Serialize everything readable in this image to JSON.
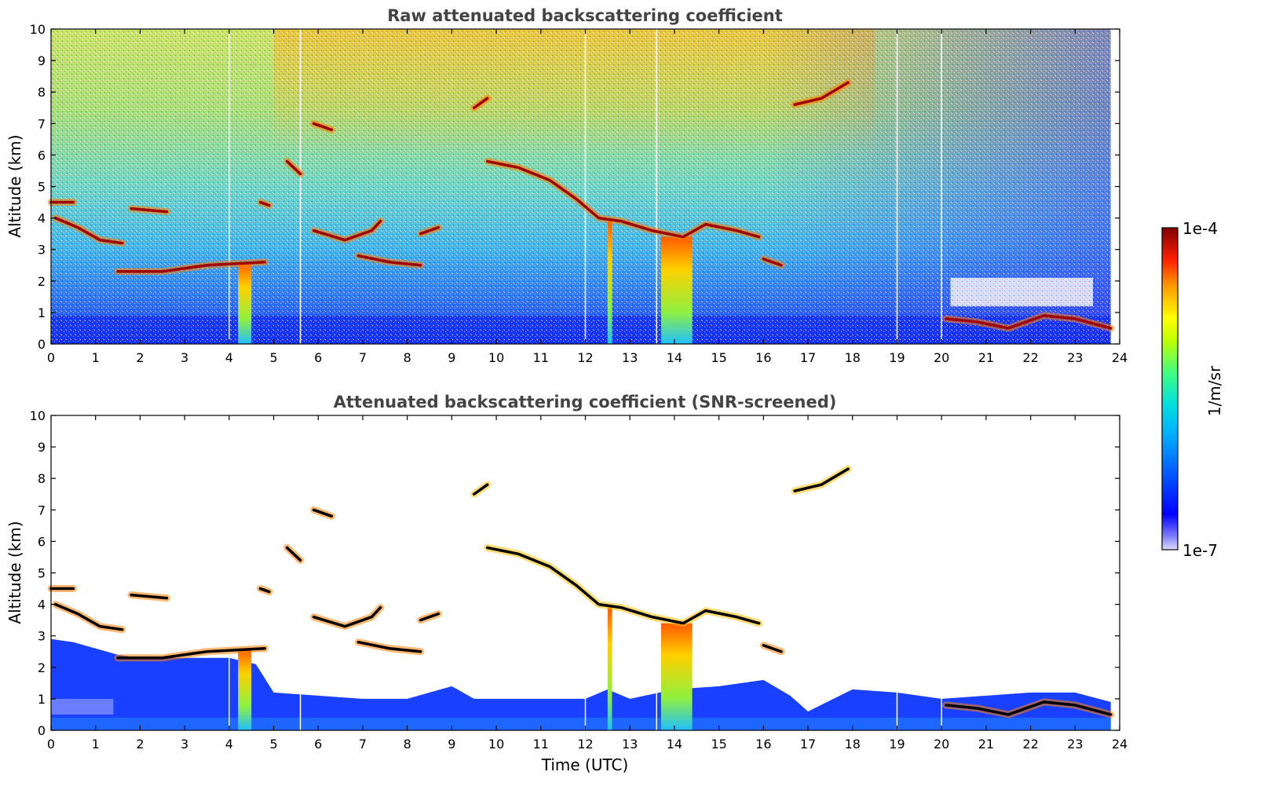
{
  "chart_data": [
    {
      "type": "heatmap",
      "title": "Raw attenuated backscattering coefficient",
      "xlabel": "",
      "ylabel": "Altitude (km)",
      "xlim": [
        0,
        24
      ],
      "ylim": [
        0,
        10
      ],
      "xticks": [
        "0",
        "1",
        "2",
        "3",
        "4",
        "5",
        "6",
        "7",
        "8",
        "9",
        "10",
        "11",
        "12",
        "13",
        "14",
        "15",
        "16",
        "17",
        "18",
        "19",
        "20",
        "21",
        "22",
        "23",
        "24"
      ],
      "yticks": [
        "0",
        "1",
        "2",
        "3",
        "4",
        "5",
        "6",
        "7",
        "8",
        "9",
        "10"
      ],
      "layers": [
        {
          "kind": "cloud",
          "points": [
            [
              0.0,
              4.5
            ],
            [
              0.5,
              4.5
            ]
          ]
        },
        {
          "kind": "cloud",
          "points": [
            [
              0.1,
              4.0
            ],
            [
              0.6,
              3.7
            ],
            [
              1.1,
              3.3
            ],
            [
              1.6,
              3.2
            ]
          ]
        },
        {
          "kind": "cloud",
          "points": [
            [
              1.8,
              4.3
            ],
            [
              2.6,
              4.2
            ]
          ]
        },
        {
          "kind": "cloud",
          "points": [
            [
              1.5,
              2.3
            ],
            [
              2.5,
              2.3
            ],
            [
              3.5,
              2.5
            ],
            [
              4.8,
              2.6
            ]
          ]
        },
        {
          "kind": "cloud",
          "points": [
            [
              4.7,
              4.5
            ],
            [
              4.9,
              4.4
            ]
          ]
        },
        {
          "kind": "cloud",
          "points": [
            [
              5.3,
              5.8
            ],
            [
              5.6,
              5.4
            ]
          ]
        },
        {
          "kind": "cloud",
          "points": [
            [
              5.9,
              7.0
            ],
            [
              6.3,
              6.8
            ]
          ]
        },
        {
          "kind": "cloud",
          "points": [
            [
              5.9,
              3.6
            ],
            [
              6.6,
              3.3
            ],
            [
              7.2,
              3.6
            ],
            [
              7.4,
              3.9
            ]
          ]
        },
        {
          "kind": "cloud",
          "points": [
            [
              6.9,
              2.8
            ],
            [
              7.6,
              2.6
            ],
            [
              8.3,
              2.5
            ]
          ]
        },
        {
          "kind": "cloud",
          "points": [
            [
              8.3,
              3.5
            ],
            [
              8.7,
              3.7
            ]
          ]
        },
        {
          "kind": "cloud",
          "points": [
            [
              9.5,
              7.5
            ],
            [
              9.8,
              7.8
            ]
          ]
        },
        {
          "kind": "cloud",
          "points": [
            [
              9.8,
              5.8
            ],
            [
              10.5,
              5.6
            ],
            [
              11.2,
              5.2
            ],
            [
              11.8,
              4.6
            ],
            [
              12.3,
              4.0
            ],
            [
              12.8,
              3.9
            ],
            [
              13.5,
              3.6
            ],
            [
              14.2,
              3.4
            ],
            [
              14.7,
              3.8
            ],
            [
              15.4,
              3.6
            ],
            [
              15.9,
              3.4
            ]
          ]
        },
        {
          "kind": "cloud",
          "points": [
            [
              16.0,
              2.7
            ],
            [
              16.4,
              2.5
            ]
          ]
        },
        {
          "kind": "cloud",
          "points": [
            [
              16.7,
              7.6
            ],
            [
              17.3,
              7.8
            ],
            [
              17.9,
              8.3
            ]
          ]
        },
        {
          "kind": "cloud",
          "points": [
            [
              20.1,
              0.8
            ],
            [
              20.8,
              0.7
            ],
            [
              21.5,
              0.5
            ],
            [
              22.3,
              0.9
            ],
            [
              23.0,
              0.8
            ],
            [
              23.8,
              0.5
            ]
          ]
        }
      ],
      "precipitation_shafts": [
        [
          4.2,
          4.5
        ],
        [
          13.7,
          14.4
        ],
        [
          12.5,
          12.6
        ]
      ],
      "colorbar": {
        "min_label": "1e-7",
        "max_label": "1e-4",
        "label": "1/m/sr",
        "scale": "log",
        "colormap": "jet"
      }
    },
    {
      "type": "heatmap",
      "title": "Attenuated backscattering coefficient (SNR-screened)",
      "xlabel": "Time (UTC)",
      "ylabel": "Altitude (km)",
      "xlim": [
        0,
        24
      ],
      "ylim": [
        0,
        10
      ],
      "xticks": [
        "0",
        "1",
        "2",
        "3",
        "4",
        "5",
        "6",
        "7",
        "8",
        "9",
        "10",
        "11",
        "12",
        "13",
        "14",
        "15",
        "16",
        "17",
        "18",
        "19",
        "20",
        "21",
        "22",
        "23",
        "24"
      ],
      "yticks": [
        "0",
        "1",
        "2",
        "3",
        "4",
        "5",
        "6",
        "7",
        "8",
        "9",
        "10"
      ]
    }
  ],
  "colors": {
    "title": "#444444",
    "jet_low": "#00007f",
    "jet_high": "#7f0000"
  }
}
